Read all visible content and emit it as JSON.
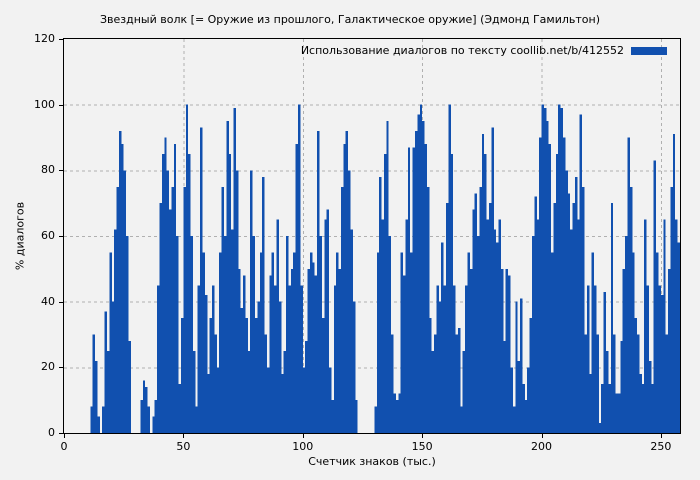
{
  "title": "Звездный волк [= Оружие из прошлого, Галактическое оружие] (Эдмонд Гамильтон)",
  "legend": {
    "label": "Использование диалогов по тексту  coollib.net/b/412552"
  },
  "axes": {
    "x": {
      "label": "Счетчик знаков (тыс.)"
    },
    "y": {
      "label": "% диалогов"
    }
  },
  "colors": {
    "background": "#f2f2f2",
    "bar": "#1150af",
    "grid": "#b0b0b0",
    "axis": "#000000",
    "text": "#000000"
  },
  "chart_data": {
    "type": "bar",
    "title": "Звездный волк [= Оружие из прошлого, Галактическое оружие] (Эдмонд Гамильтон)",
    "xlabel": "Счетчик знаков (тыс.)",
    "ylabel": "% диалогов",
    "legend": "Использование диалогов по тексту  coollib.net/b/412552",
    "legend_position": "top-right",
    "grid": true,
    "xlim": [
      0,
      258
    ],
    "ylim": [
      0,
      120
    ],
    "xticks": [
      0,
      50,
      100,
      150,
      200,
      250
    ],
    "yticks": [
      0,
      20,
      40,
      60,
      80,
      100,
      120
    ],
    "x_start": 0,
    "x_step": 1,
    "x_unit": "thousand_characters",
    "y_unit": "percent_dialogs",
    "values": [
      0,
      0,
      0,
      0,
      0,
      0,
      0,
      0,
      0,
      0,
      0,
      8,
      30,
      22,
      5,
      0,
      8,
      37,
      25,
      55,
      40,
      62,
      75,
      92,
      88,
      80,
      60,
      28,
      0,
      0,
      0,
      0,
      10,
      16,
      14,
      8,
      0,
      5,
      10,
      45,
      70,
      85,
      90,
      80,
      68,
      75,
      88,
      60,
      15,
      35,
      75,
      100,
      85,
      60,
      25,
      8,
      45,
      93,
      55,
      42,
      18,
      35,
      45,
      30,
      20,
      55,
      75,
      60,
      95,
      85,
      62,
      99,
      80,
      50,
      38,
      48,
      35,
      25,
      80,
      60,
      35,
      40,
      55,
      78,
      30,
      20,
      48,
      55,
      45,
      65,
      40,
      18,
      25,
      60,
      45,
      50,
      55,
      88,
      100,
      45,
      20,
      28,
      50,
      55,
      52,
      48,
      92,
      60,
      35,
      65,
      68,
      20,
      10,
      45,
      55,
      50,
      75,
      88,
      92,
      80,
      62,
      40,
      10,
      0,
      0,
      0,
      0,
      0,
      0,
      0,
      8,
      55,
      78,
      65,
      85,
      95,
      60,
      30,
      12,
      10,
      12,
      55,
      48,
      65,
      87,
      55,
      87,
      92,
      97,
      100,
      95,
      88,
      75,
      35,
      25,
      30,
      45,
      40,
      58,
      45,
      70,
      100,
      85,
      45,
      30,
      32,
      8,
      25,
      45,
      55,
      50,
      68,
      73,
      60,
      75,
      91,
      85,
      65,
      70,
      93,
      62,
      58,
      65,
      50,
      28,
      50,
      48,
      20,
      8,
      40,
      22,
      41,
      15,
      10,
      20,
      35,
      60,
      72,
      65,
      90,
      100,
      99,
      95,
      88,
      55,
      70,
      85,
      100,
      99,
      90,
      80,
      73,
      62,
      70,
      78,
      65,
      97,
      75,
      30,
      45,
      18,
      55,
      45,
      30,
      3,
      15,
      43,
      25,
      15,
      70,
      30,
      12,
      12,
      28,
      50,
      60,
      90,
      75,
      55,
      35,
      30,
      18,
      15,
      65,
      45,
      22,
      15,
      83,
      55,
      45,
      42,
      65,
      30,
      50,
      75,
      91,
      65,
      58
    ]
  }
}
